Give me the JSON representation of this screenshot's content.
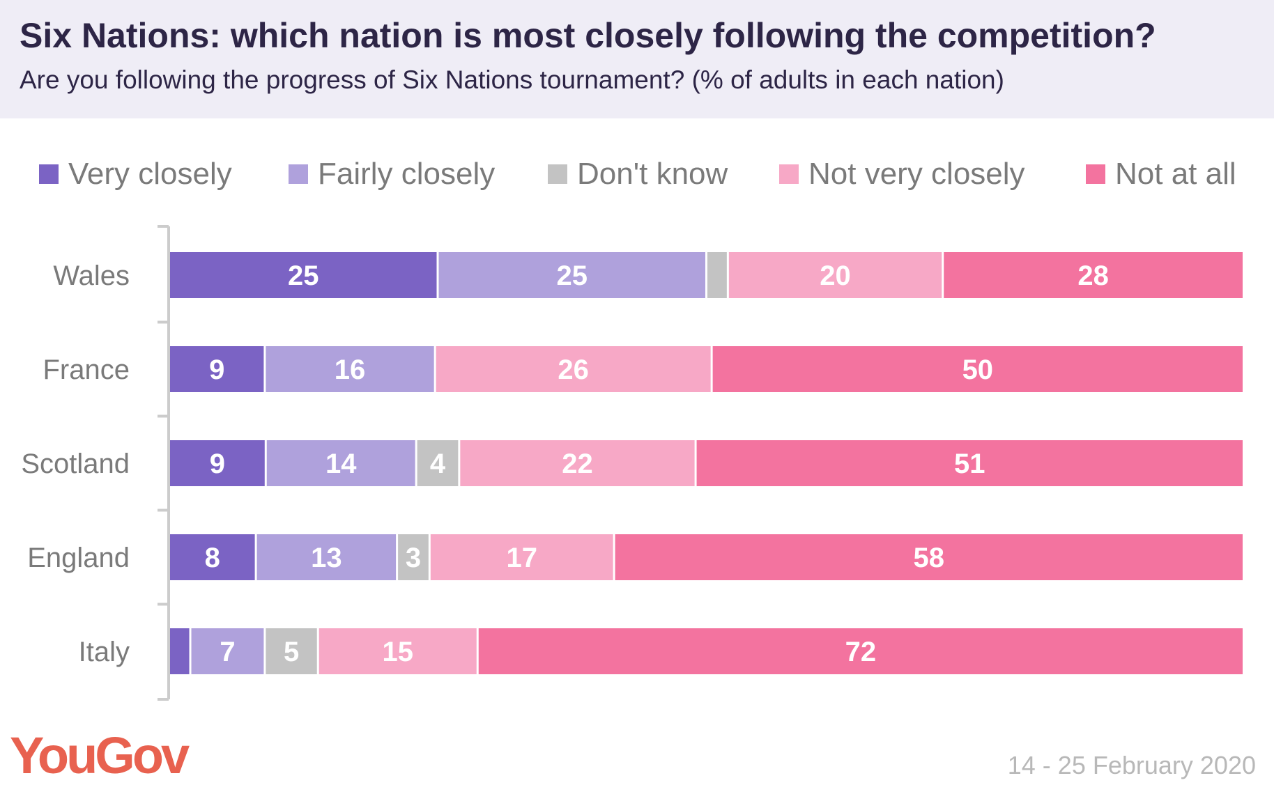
{
  "title": "Six Nations: which nation is most closely following the competition?",
  "subtitle": "Are you following the progress of Six Nations tournament? (% of adults in each nation)",
  "footer": {
    "logo": "YouGov",
    "date": "14 - 25 February 2020"
  },
  "chart_data": {
    "type": "bar",
    "orientation": "horizontal",
    "stacked": true,
    "title": "Six Nations: which nation is most closely following the competition?",
    "subtitle": "Are you following the progress of Six Nations tournament? (% of adults in each nation)",
    "legend_position": "top",
    "categories": [
      "Wales",
      "France",
      "Scotland",
      "England",
      "Italy"
    ],
    "series": [
      {
        "name": "Very closely",
        "color": "#7b63c4",
        "values": [
          25,
          9,
          9,
          8,
          2
        ]
      },
      {
        "name": "Fairly closely",
        "color": "#afa1dc",
        "values": [
          25,
          16,
          14,
          13,
          7
        ]
      },
      {
        "name": "Don't know",
        "color": "#c3c3c3",
        "values": [
          2,
          0,
          4,
          3,
          5
        ]
      },
      {
        "name": "Not very closely",
        "color": "#f7a8c6",
        "values": [
          20,
          26,
          22,
          17,
          15
        ]
      },
      {
        "name": "Not at all",
        "color": "#f3739f",
        "values": [
          28,
          50,
          51,
          58,
          72
        ]
      }
    ],
    "data_labels": [
      [
        "25",
        "25",
        "",
        "20",
        "28"
      ],
      [
        "9",
        "16",
        "",
        "26",
        "50"
      ],
      [
        "9",
        "14",
        "4",
        "22",
        "51"
      ],
      [
        "8",
        "13",
        "3",
        "17",
        "58"
      ],
      [
        "",
        "7",
        "5",
        "15",
        "72"
      ]
    ]
  }
}
